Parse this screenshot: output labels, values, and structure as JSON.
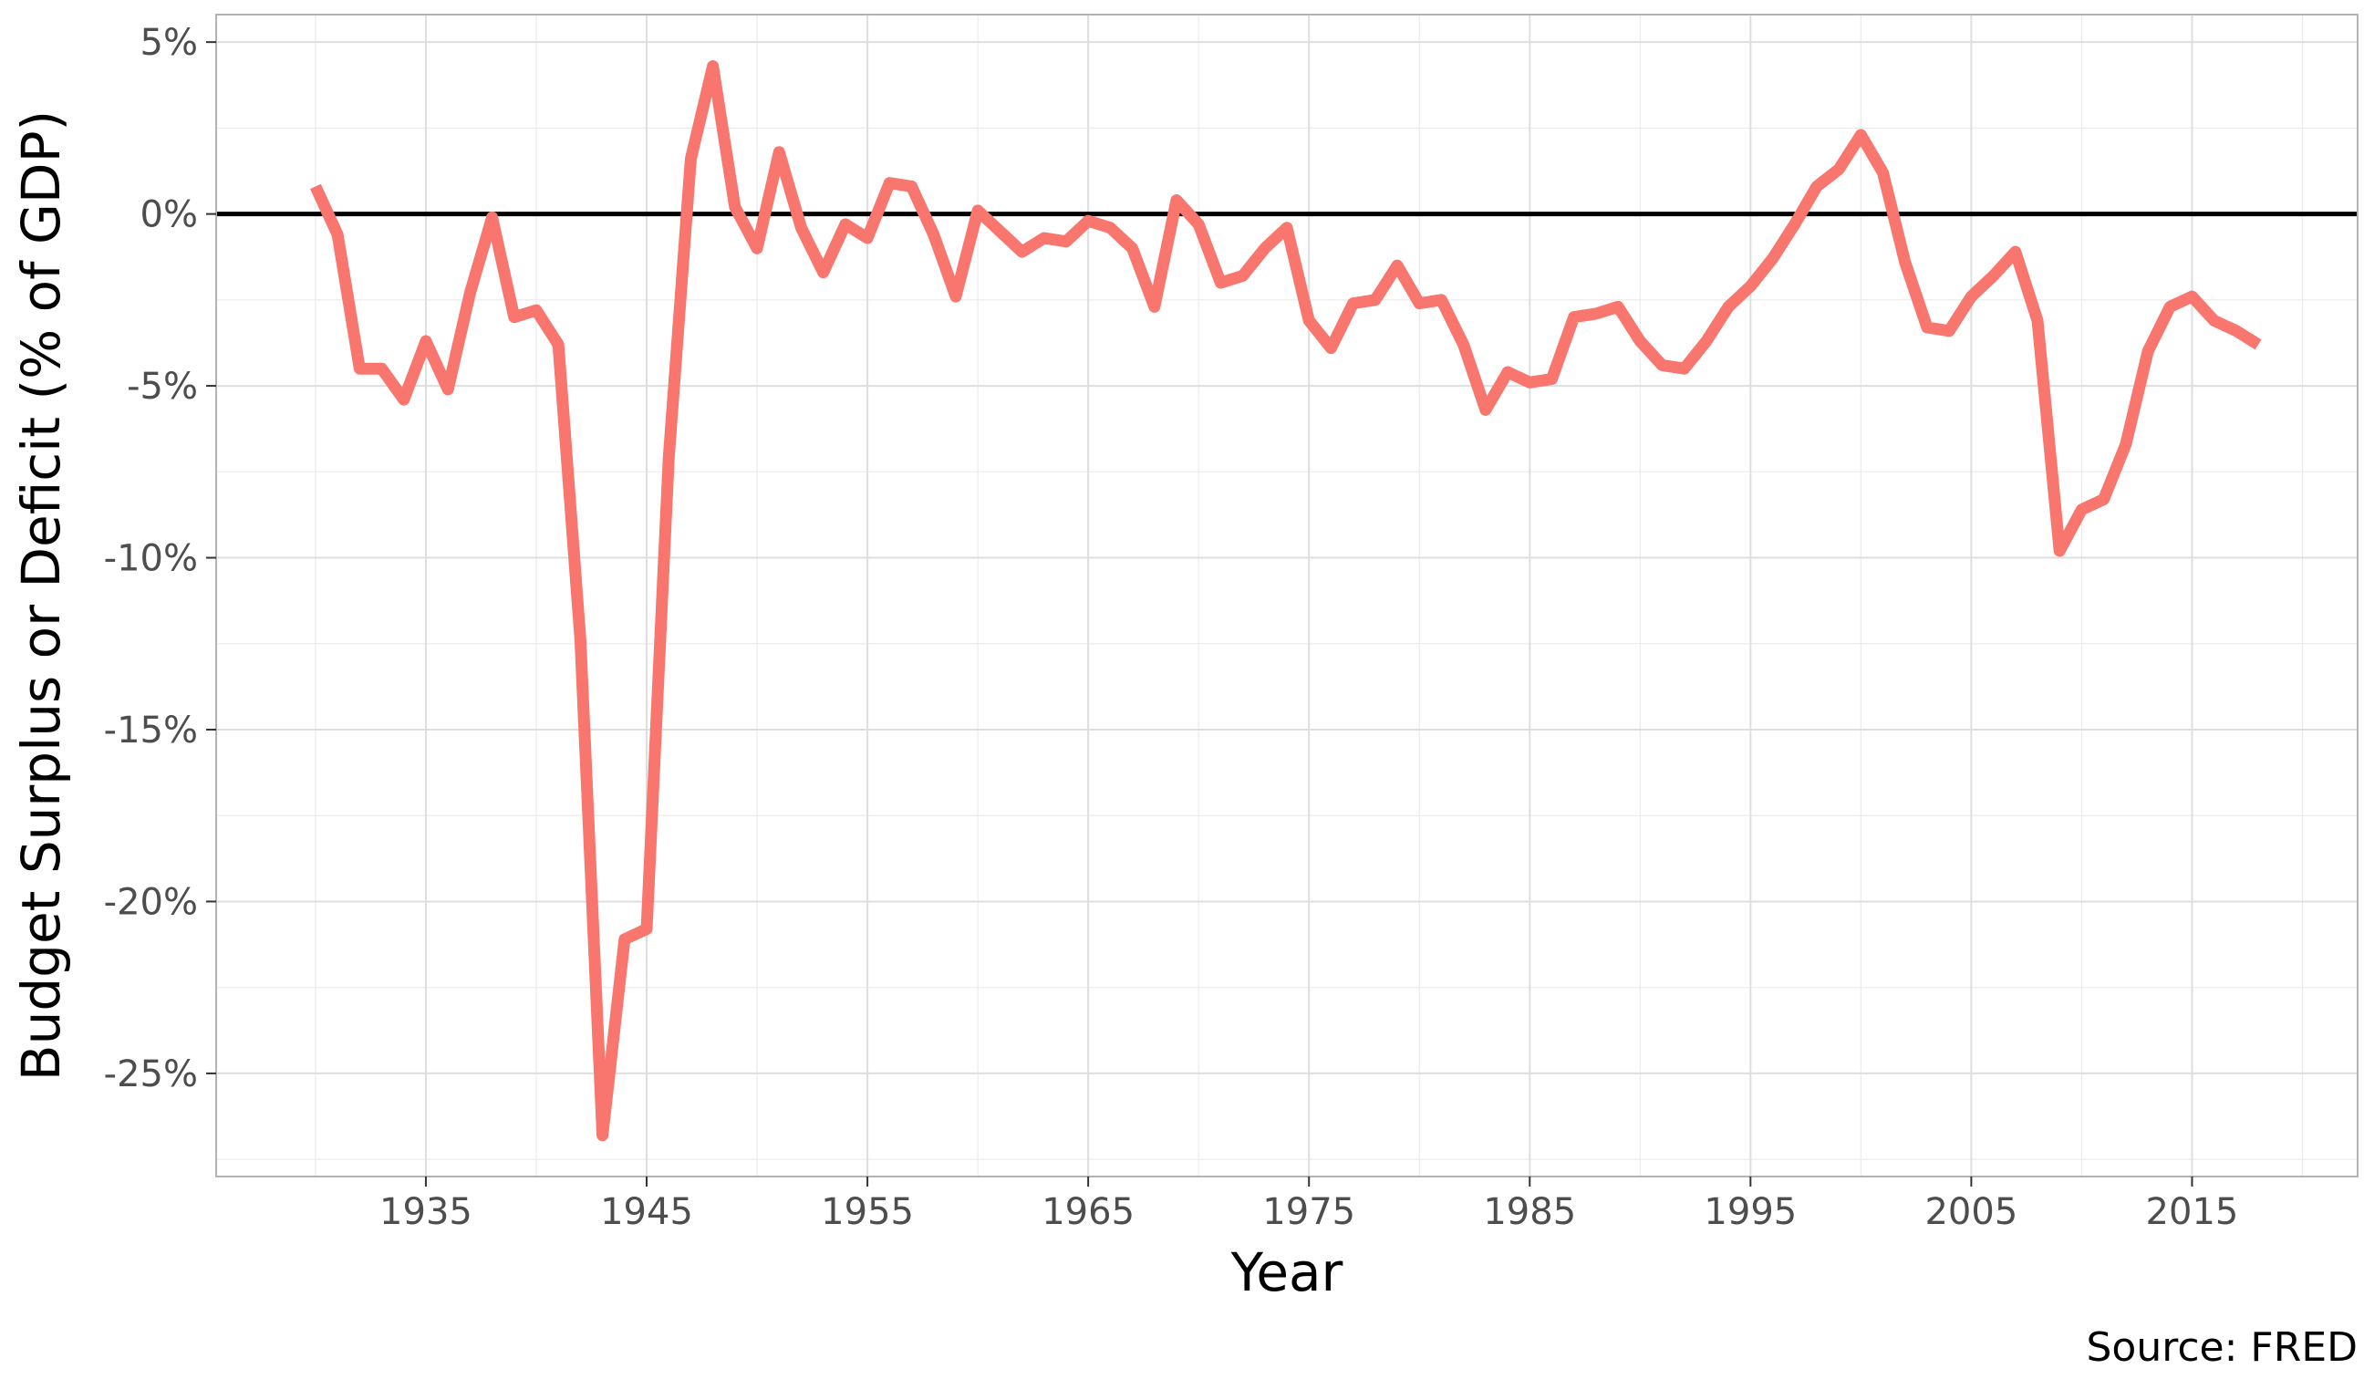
{
  "chart_data": {
    "type": "line",
    "title": "",
    "xlabel": "Year",
    "ylabel": "Budget Surplus or Deficit (% of GDP)",
    "caption": "Source: FRED",
    "xlim": [
      1925.5,
      2022.5
    ],
    "ylim": [
      -28,
      5.8
    ],
    "x_ticks": [
      1935,
      1945,
      1955,
      1965,
      1975,
      1985,
      1995,
      2005,
      2015
    ],
    "x_tick_labels": [
      "1935",
      "1945",
      "1955",
      "1965",
      "1975",
      "1985",
      "1995",
      "2005",
      "2015"
    ],
    "y_ticks": [
      5,
      0,
      -5,
      -10,
      -15,
      -20,
      -25
    ],
    "y_tick_labels": [
      "5%",
      "0%",
      "-5%",
      "-10%",
      "-15%",
      "-20%",
      "-25%"
    ],
    "grid": true,
    "reference_line": {
      "y": 0,
      "color": "#000000"
    },
    "line_color": "#F8766D",
    "x": [
      1930,
      1931,
      1932,
      1933,
      1934,
      1935,
      1936,
      1937,
      1938,
      1939,
      1940,
      1941,
      1942,
      1943,
      1944,
      1945,
      1946,
      1947,
      1948,
      1949,
      1950,
      1951,
      1952,
      1953,
      1954,
      1955,
      1956,
      1957,
      1958,
      1959,
      1960,
      1961,
      1962,
      1963,
      1964,
      1965,
      1966,
      1967,
      1968,
      1969,
      1970,
      1971,
      1972,
      1973,
      1974,
      1975,
      1976,
      1977,
      1978,
      1979,
      1980,
      1981,
      1982,
      1983,
      1984,
      1985,
      1986,
      1987,
      1988,
      1989,
      1990,
      1991,
      1992,
      1993,
      1994,
      1995,
      1996,
      1997,
      1998,
      1999,
      2000,
      2001,
      2002,
      2003,
      2004,
      2005,
      2006,
      2007,
      2008,
      2009,
      2010,
      2011,
      2012,
      2013,
      2014,
      2015,
      2016,
      2017,
      2018
    ],
    "values": [
      0.8,
      -0.6,
      -4.5,
      -4.5,
      -5.4,
      -3.7,
      -5.1,
      -2.3,
      -0.1,
      -3.0,
      -2.8,
      -3.8,
      -12.4,
      -26.8,
      -21.1,
      -20.8,
      -7.1,
      1.6,
      4.3,
      0.2,
      -1.0,
      1.8,
      -0.4,
      -1.7,
      -0.3,
      -0.7,
      0.9,
      0.8,
      -0.6,
      -2.4,
      0.1,
      -0.5,
      -1.1,
      -0.7,
      -0.8,
      -0.2,
      -0.4,
      -1.0,
      -2.7,
      0.4,
      -0.3,
      -2.0,
      -1.8,
      -1.0,
      -0.4,
      -3.1,
      -3.9,
      -2.6,
      -2.5,
      -1.5,
      -2.6,
      -2.5,
      -3.8,
      -5.7,
      -4.6,
      -4.9,
      -4.8,
      -3.0,
      -2.9,
      -2.7,
      -3.7,
      -4.4,
      -4.5,
      -3.7,
      -2.7,
      -2.1,
      -1.3,
      -0.3,
      0.8,
      1.3,
      2.3,
      1.2,
      -1.4,
      -3.3,
      -3.4,
      -2.4,
      -1.8,
      -1.1,
      -3.1,
      -9.8,
      -8.6,
      -8.3,
      -6.7,
      -4.0,
      -2.7,
      -2.4,
      -3.1,
      -3.4,
      -3.8
    ]
  }
}
